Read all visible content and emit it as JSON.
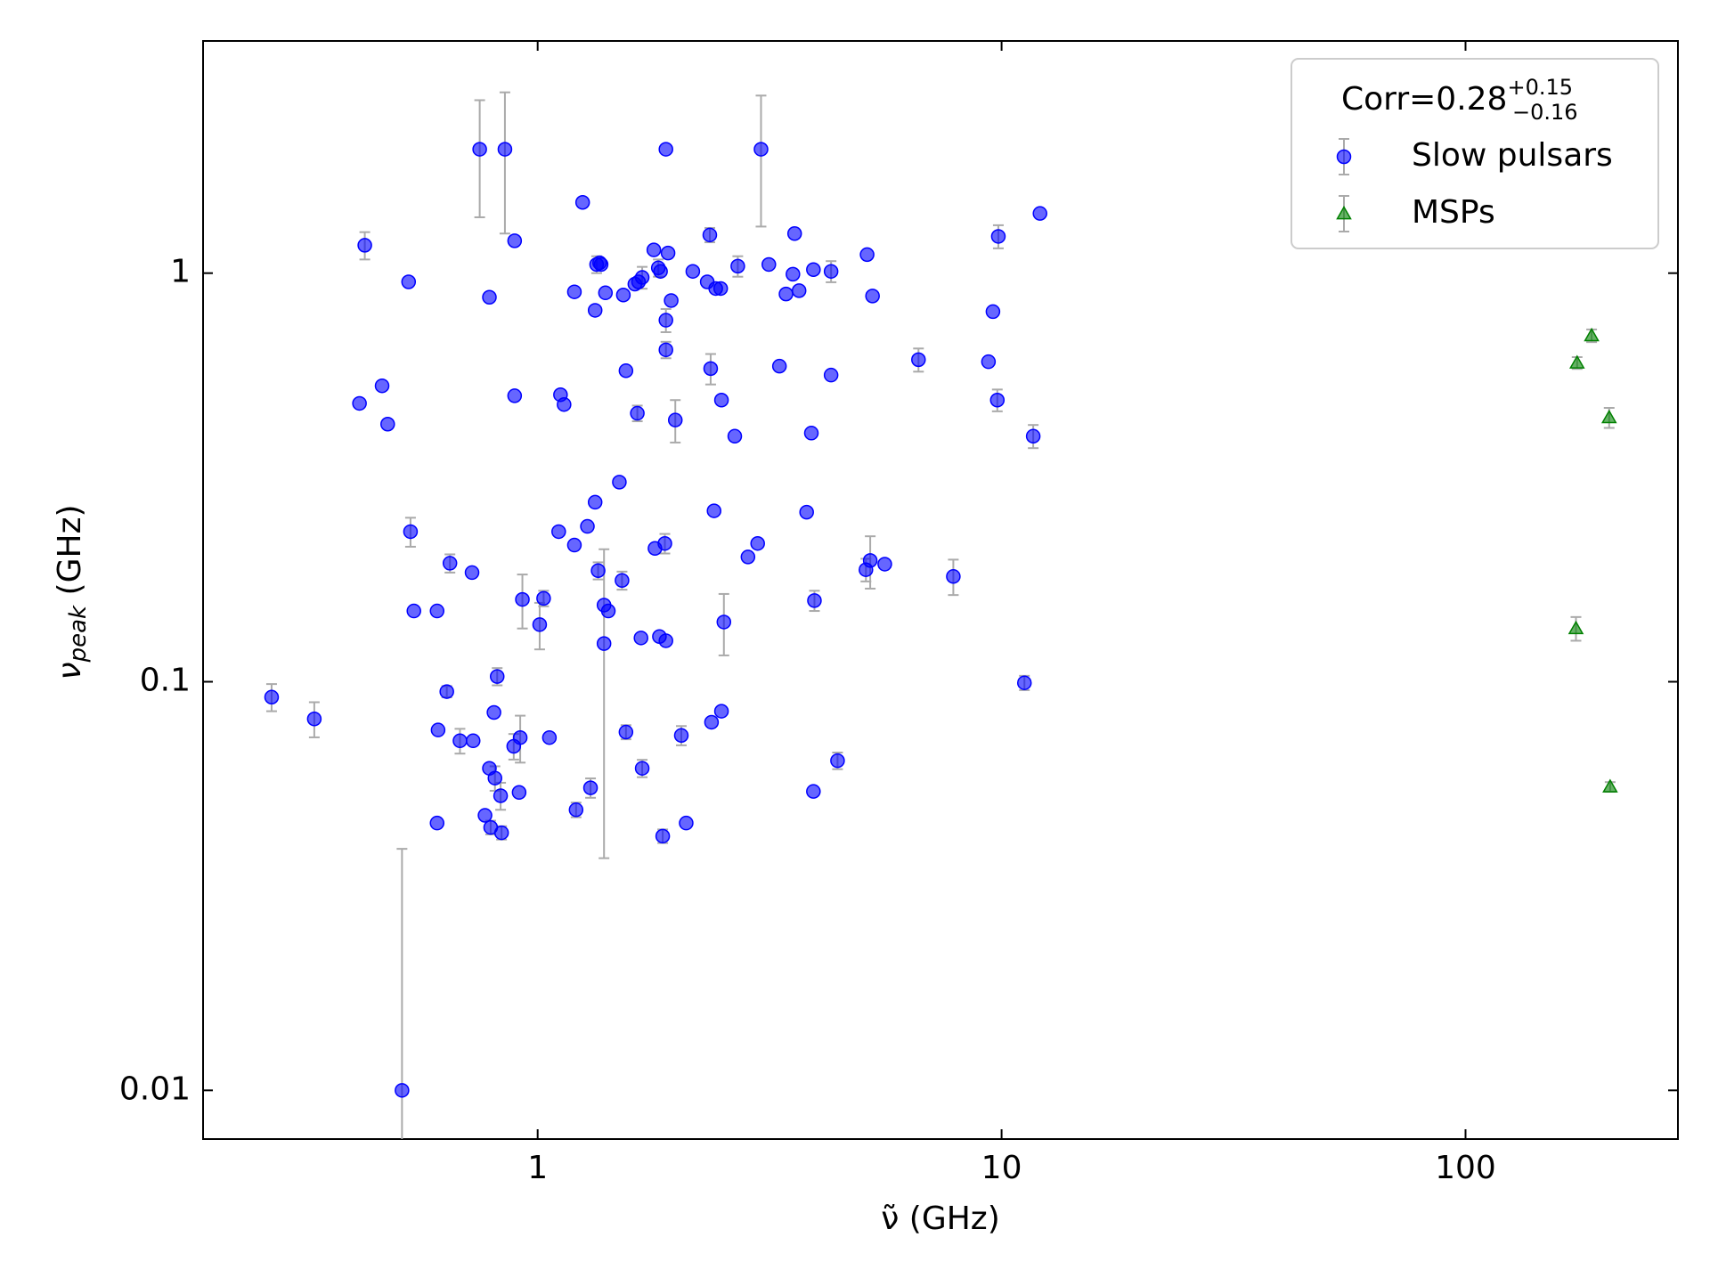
{
  "chart_data": {
    "type": "scatter",
    "xlabel": "ν̃ (GHz)",
    "ylabel": {
      "symbol": "ν",
      "subscript": "peak",
      "unit": " (GHz)"
    },
    "xscale": "log",
    "yscale": "log",
    "xlim": [
      0.19,
      287
    ],
    "ylim": [
      0.0076,
      3.7
    ],
    "xticks": [
      1,
      10,
      100
    ],
    "yticks": [
      0.01,
      0.1,
      1
    ],
    "legend_title": {
      "text": "Corr=0.28",
      "sup": "+0.15",
      "sub": "−0.16"
    },
    "legend_loc": "upper right",
    "errorbar_color": "#aaaaaa",
    "series": [
      {
        "name": "Slow pulsars",
        "color": "#0000ff",
        "marker": "o",
        "x": [
          0.267,
          0.33,
          0.424,
          0.413,
          0.462,
          0.475,
          0.527,
          0.51,
          0.532,
          0.541,
          0.607,
          0.61,
          0.607,
          0.637,
          0.647,
          0.68,
          0.722,
          0.726,
          0.75,
          0.787,
          0.77,
          0.787,
          0.792,
          0.805,
          0.809,
          0.818,
          0.832,
          0.836,
          0.85,
          0.892,
          0.892,
          0.888,
          0.912,
          0.917,
          0.927,
          1.01,
          1.03,
          1.06,
          1.11,
          1.12,
          1.14,
          1.2,
          1.2,
          1.21,
          1.25,
          1.28,
          1.3,
          1.33,
          1.33,
          1.34,
          1.36,
          1.37,
          1.35,
          1.39,
          1.39,
          1.4,
          1.42,
          1.5,
          1.52,
          1.53,
          1.55,
          1.55,
          1.62,
          1.64,
          1.65,
          1.67,
          1.68,
          1.68,
          1.78,
          1.79,
          1.82,
          1.83,
          1.84,
          1.86,
          1.88,
          1.89,
          1.89,
          1.89,
          1.89,
          1.91,
          1.94,
          1.98,
          2.04,
          2.09,
          2.16,
          2.32,
          2.35,
          2.36,
          2.37,
          2.4,
          2.42,
          2.48,
          2.49,
          2.49,
          2.52,
          2.66,
          2.7,
          2.84,
          2.98,
          3.03,
          3.15,
          3.32,
          3.43,
          3.55,
          3.58,
          3.66,
          3.8,
          3.89,
          3.93,
          3.93,
          3.95,
          4.29,
          4.29,
          4.43,
          5.1,
          5.13,
          5.21,
          5.27,
          5.6,
          6.62,
          7.87,
          9.37,
          9.58,
          9.79,
          9.84,
          11.2,
          11.7,
          12.1
        ],
        "values": [
          0.0917,
          0.0811,
          1.17,
          0.48,
          0.53,
          0.427,
          0.952,
          0.01,
          0.233,
          0.149,
          0.149,
          0.0762,
          0.0451,
          0.0946,
          0.195,
          0.0717,
          0.185,
          0.0717,
          2.01,
          0.873,
          0.0471,
          0.0614,
          0.044,
          0.0841,
          0.0581,
          0.103,
          0.0526,
          0.0427,
          2.01,
          1.2,
          0.501,
          0.0695,
          0.0536,
          0.073,
          0.159,
          0.138,
          0.16,
          0.073,
          0.233,
          0.504,
          0.477,
          0.9,
          0.216,
          0.0486,
          1.49,
          0.24,
          0.055,
          0.811,
          0.275,
          1.05,
          1.06,
          1.05,
          0.187,
          0.154,
          0.124,
          0.895,
          0.149,
          0.308,
          0.177,
          0.884,
          0.577,
          0.0753,
          0.94,
          0.454,
          0.952,
          0.128,
          0.976,
          0.0614,
          1.14,
          0.212,
          1.03,
          0.129,
          1.01,
          0.0419,
          0.218,
          0.767,
          2.01,
          0.649,
          0.126,
          1.12,
          0.857,
          0.437,
          0.0739,
          0.0451,
          1.01,
          0.952,
          1.24,
          0.584,
          0.0796,
          0.262,
          0.917,
          0.917,
          0.489,
          0.0847,
          0.14,
          0.399,
          1.04,
          0.202,
          0.218,
          2.01,
          1.05,
          0.592,
          0.889,
          0.994,
          1.25,
          0.906,
          0.26,
          0.406,
          1.02,
          0.0539,
          0.158,
          1.01,
          0.563,
          0.0641,
          0.188,
          1.11,
          0.198,
          0.879,
          0.194,
          0.614,
          0.181,
          0.607,
          0.805,
          0.489,
          1.23,
          0.0994,
          0.399,
          1.4
        ],
        "errors": [
          0.007,
          0.008,
          0.09,
          null,
          null,
          null,
          null,
          0.029,
          0.019,
          null,
          null,
          null,
          null,
          0.003,
          0.01,
          0.005,
          null,
          null,
          0.64,
          null,
          null,
          null,
          0.0017,
          null,
          0.004,
          0.005,
          0.004,
          0.0016,
          0.76,
          null,
          null,
          0.005,
          null,
          0.0096,
          0.024,
          0.018,
          0.007,
          null,
          null,
          null,
          null,
          null,
          null,
          0.002,
          null,
          null,
          0.003,
          null,
          null,
          0.05,
          null,
          null,
          0.009,
          null,
          0.087,
          null,
          null,
          null,
          0.009,
          null,
          null,
          0.003,
          null,
          0.02,
          null,
          null,
          0.06,
          0.003,
          null,
          null,
          0.05,
          null,
          null,
          0.0016,
          0.012,
          0.05,
          null,
          0.03,
          null,
          null,
          null,
          0.052,
          0.004,
          null,
          null,
          null,
          0.05,
          0.05,
          null,
          null,
          null,
          null,
          null,
          null,
          0.024,
          null,
          0.06,
          null,
          null,
          0.71,
          null,
          null,
          null,
          null,
          null,
          null,
          null,
          null,
          null,
          null,
          0.009,
          0.06,
          null,
          0.003,
          0.012,
          null,
          0.029,
          null,
          null,
          0.04,
          0.018,
          null,
          null,
          0.03,
          0.08,
          0.004,
          0.026,
          null
        ]
      },
      {
        "name": "MSPs",
        "color": "#008000",
        "marker": "^",
        "x": [
          174,
          187,
          204,
          173,
          205
        ],
        "values": [
          0.603,
          0.703,
          0.443,
          0.135,
          0.0553
        ],
        "errors": [
          0.02,
          0.025,
          0.025,
          0.009,
          0.0015
        ]
      }
    ]
  }
}
